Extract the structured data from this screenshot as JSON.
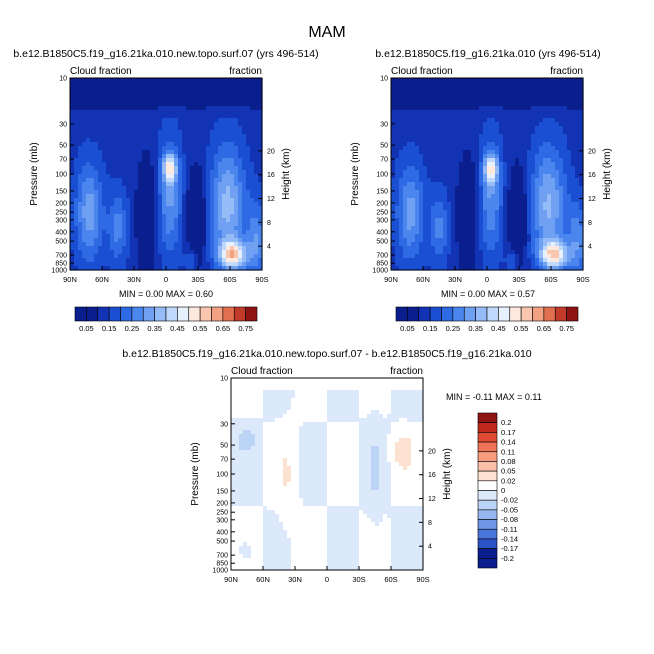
{
  "figure": {
    "season": "MAM",
    "panels": [
      {
        "title": "b.e12.B1850C5.f19_g16.21ka.010.new.topo.surf.07 (yrs 496-514)",
        "left_label": "Cloud fraction",
        "right_label": "fraction",
        "minmax": "MIN =   0.00  MAX =   0.60"
      },
      {
        "title": "b.e12.B1850C5.f19_g16.21ka.010 (yrs 496-514)",
        "left_label": "Cloud fraction",
        "right_label": "fraction",
        "minmax": "MIN =   0.00  MAX =   0.57"
      },
      {
        "title": "b.e12.B1850C5.f19_g16.21ka.010.new.topo.surf.07 - b.e12.B1850C5.f19_g16.21ka.010",
        "left_label": "Cloud fraction",
        "right_label": "fraction",
        "minmax": "MIN =  -0.11  MAX =   0.11"
      }
    ]
  },
  "chart_data": [
    {
      "type": "heatmap",
      "title": "b.e12.B1850C5.f19_g16.21ka.010.new.topo.surf.07 (yrs 496-514)",
      "variable": "Cloud fraction",
      "units": "fraction",
      "xlabel": "",
      "ylabel": "Pressure (mb)",
      "y2label": "Height (km)",
      "x_ticks": [
        "90N",
        "60N",
        "30N",
        "0",
        "30S",
        "60S",
        "90S"
      ],
      "y_ticks": [
        10,
        30,
        50,
        70,
        100,
        150,
        200,
        250,
        300,
        400,
        500,
        700,
        850,
        1000
      ],
      "y2_ticks": [
        4,
        8,
        12,
        16,
        20
      ],
      "min": 0.0,
      "max": 0.6,
      "levels": [
        0.05,
        0.1,
        0.15,
        0.2,
        0.25,
        0.3,
        0.35,
        0.4,
        0.45,
        0.5,
        0.55,
        0.6,
        0.65,
        0.7,
        0.75
      ],
      "level_labels": [
        "0.05",
        "0.15",
        "0.25",
        "0.35",
        "0.45",
        "0.55",
        "0.65",
        "0.75"
      ]
    },
    {
      "type": "heatmap",
      "title": "b.e12.B1850C5.f19_g16.21ka.010 (yrs 496-514)",
      "variable": "Cloud fraction",
      "units": "fraction",
      "xlabel": "",
      "ylabel": "Pressure (mb)",
      "y2label": "Height (km)",
      "x_ticks": [
        "90N",
        "60N",
        "30N",
        "0",
        "30S",
        "60S",
        "90S"
      ],
      "y_ticks": [
        10,
        30,
        50,
        70,
        100,
        150,
        200,
        250,
        300,
        400,
        500,
        700,
        850,
        1000
      ],
      "y2_ticks": [
        4,
        8,
        12,
        16,
        20
      ],
      "min": 0.0,
      "max": 0.57,
      "levels": [
        0.05,
        0.1,
        0.15,
        0.2,
        0.25,
        0.3,
        0.35,
        0.4,
        0.45,
        0.5,
        0.55,
        0.6,
        0.65,
        0.7,
        0.75
      ],
      "level_labels": [
        "0.05",
        "0.15",
        "0.25",
        "0.35",
        "0.45",
        "0.55",
        "0.65",
        "0.75"
      ]
    },
    {
      "type": "heatmap",
      "title": "b.e12.B1850C5.f19_g16.21ka.010.new.topo.surf.07 - b.e12.B1850C5.f19_g16.21ka.010",
      "variable": "Cloud fraction",
      "units": "fraction",
      "xlabel": "",
      "ylabel": "Pressure (mb)",
      "y2label": "Height (km)",
      "x_ticks": [
        "90N",
        "60N",
        "30N",
        "0",
        "30S",
        "60S",
        "90S"
      ],
      "y_ticks": [
        10,
        30,
        50,
        70,
        100,
        150,
        200,
        250,
        300,
        400,
        500,
        700,
        850,
        1000
      ],
      "y2_ticks": [
        4,
        8,
        12,
        16,
        20
      ],
      "min": -0.11,
      "max": 0.11,
      "levels": [
        0.2,
        0.17,
        0.14,
        0.11,
        0.08,
        0.05,
        0.02,
        0,
        -0.02,
        -0.05,
        -0.08,
        -0.11,
        -0.14,
        -0.17,
        -0.2
      ],
      "level_labels": [
        "0.2",
        "0.17",
        "0.14",
        "0.11",
        "0.08",
        "0.05",
        "0.02",
        "0",
        "-0.02",
        "-0.05",
        "-0.08",
        "-0.11",
        "-0.14",
        "-0.17",
        "-0.2"
      ]
    }
  ],
  "colors": {
    "seq": [
      "#0b1e8e",
      "#1133b4",
      "#1a4fd4",
      "#2d6ae4",
      "#4b86ee",
      "#6fa0f2",
      "#96bcf7",
      "#c0d8fb",
      "#e6f1fd",
      "#fde9de",
      "#f9c7b0",
      "#f2a283",
      "#e07050",
      "#c23a2a",
      "#8e1414"
    ],
    "div": [
      "#8e1414",
      "#c0281e",
      "#de4a32",
      "#ef7356",
      "#f79b7e",
      "#fbc1a8",
      "#fde2d2",
      "#ffffff",
      "#dce9fa",
      "#bcd4f6",
      "#96b7ef",
      "#6f96e6",
      "#4a75dc",
      "#2b53c5",
      "#0b1e8e"
    ]
  }
}
